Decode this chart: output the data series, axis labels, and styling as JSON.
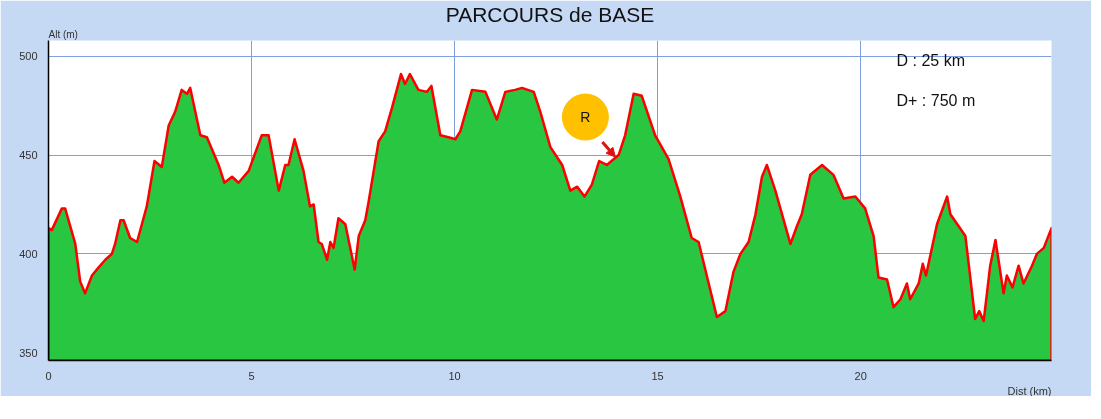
{
  "chart_data": {
    "type": "area",
    "title": "PARCOURS de BASE",
    "xlabel": "Dist (km)",
    "ylabel": "Alt (m)",
    "x": [
      0,
      0.08,
      0.33,
      0.41,
      0.66,
      0.78,
      0.9,
      1.07,
      1.23,
      1.4,
      1.56,
      1.64,
      1.77,
      1.85,
      2.01,
      2.18,
      2.42,
      2.61,
      2.79,
      2.96,
      3.12,
      3.28,
      3.41,
      3.49,
      3.74,
      3.9,
      4.19,
      4.33,
      4.52,
      4.68,
      4.93,
      5.25,
      5.42,
      5.67,
      5.83,
      5.91,
      6.06,
      6.28,
      6.44,
      6.53,
      6.65,
      6.73,
      6.86,
      6.94,
      7.02,
      7.14,
      7.31,
      7.54,
      7.64,
      7.8,
      7.88,
      8.13,
      8.29,
      8.46,
      8.68,
      8.78,
      8.9,
      9.11,
      9.32,
      9.43,
      9.65,
      9.85,
      10.02,
      10.14,
      10.43,
      10.76,
      11.04,
      11.25,
      11.49,
      11.66,
      11.95,
      12.11,
      12.36,
      12.65,
      12.85,
      13.02,
      13.2,
      13.38,
      13.56,
      13.75,
      14.04,
      14.2,
      14.41,
      14.61,
      14.94,
      15.27,
      15.56,
      15.84,
      16.01,
      16.21,
      16.46,
      16.67,
      16.87,
      17.04,
      17.24,
      17.41,
      17.57,
      17.69,
      17.9,
      18.27,
      18.43,
      18.55,
      18.76,
      19.05,
      19.33,
      19.58,
      19.87,
      20.11,
      20.32,
      20.44,
      20.65,
      20.81,
      20.98,
      21.14,
      21.22,
      21.43,
      21.53,
      21.61,
      21.88,
      22.13,
      22.21,
      22.58,
      22.82,
      22.92,
      23.03,
      23.19,
      23.32,
      23.52,
      23.6,
      23.74,
      23.89,
      24.01,
      24.22,
      24.34,
      24.51,
      24.7
    ],
    "series": [
      {
        "color": "#28c641",
        "values": [
          413,
          412,
          423,
          423,
          405,
          386,
          380,
          389,
          393,
          397,
          400,
          405,
          417,
          417,
          408,
          406,
          424,
          447,
          444,
          465,
          472,
          483,
          481,
          484,
          460,
          459,
          445,
          436,
          439,
          436,
          442,
          460,
          460,
          432,
          445,
          445,
          458,
          442,
          424,
          425,
          406,
          405,
          397,
          406,
          403,
          418,
          415,
          392,
          409,
          417,
          426,
          457,
          462,
          474,
          491,
          486,
          491,
          483,
          482,
          485,
          460,
          459,
          458,
          462,
          483,
          482,
          468,
          482,
          483,
          484,
          482,
          472,
          454,
          445,
          432,
          434,
          429,
          435,
          447,
          445,
          450,
          460,
          481,
          480,
          460,
          448,
          429,
          408,
          406,
          389,
          368,
          371,
          391,
          400,
          406,
          420,
          439,
          445,
          432,
          405,
          414,
          420,
          440,
          445,
          440,
          428,
          429,
          423,
          409,
          388,
          387,
          373,
          377,
          385,
          377,
          385,
          395,
          389,
          415,
          429,
          420,
          409,
          367,
          371,
          366,
          394,
          407,
          380,
          389,
          383,
          394,
          385,
          394,
          400,
          403,
          413
        ]
      }
    ],
    "xlim": [
      0,
      24.7
    ],
    "ylim": [
      346,
      508
    ],
    "xticks": [
      0,
      5,
      10,
      15,
      20
    ],
    "yticks": [
      350,
      400,
      450,
      500
    ],
    "grid": true,
    "annotations": [
      "D : 25 km",
      "D+ : 750 m",
      {
        "text": "R",
        "x": 13.96,
        "y": 449
      }
    ]
  }
}
